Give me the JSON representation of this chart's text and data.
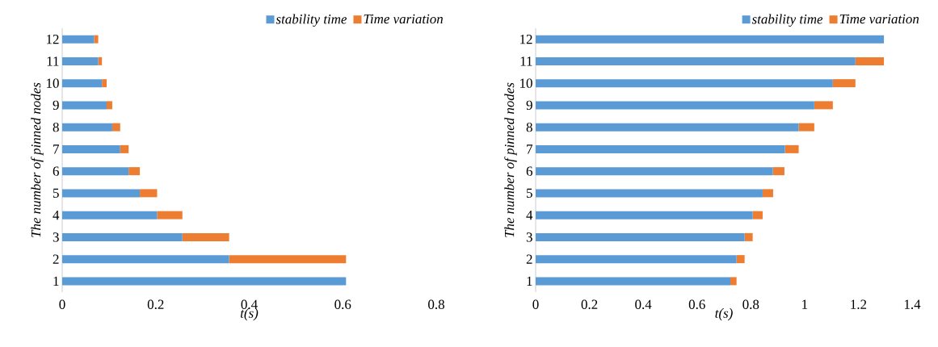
{
  "chart_data": [
    {
      "type": "bar",
      "orientation": "horizontal",
      "stacked": true,
      "legend": "top right",
      "xlabel": "t(s)",
      "ylabel": "The number of pinned nodes",
      "categories": [
        "12",
        "11",
        "10",
        "9",
        "8",
        "7",
        "6",
        "5",
        "4",
        "3",
        "2",
        "1"
      ],
      "xlim": [
        0,
        0.8
      ],
      "xticks": [
        0,
        0.2,
        0.4,
        0.6,
        0.8
      ],
      "series": [
        {
          "name": "stability time",
          "color": "#5b9bd5",
          "values": [
            0.068,
            0.077,
            0.085,
            0.095,
            0.107,
            0.124,
            0.142,
            0.166,
            0.203,
            0.257,
            0.357,
            0.607
          ]
        },
        {
          "name": "Time variation",
          "color": "#ed7d31",
          "values": [
            0.009,
            0.008,
            0.01,
            0.012,
            0.017,
            0.018,
            0.024,
            0.037,
            0.054,
            0.1,
            0.25,
            0
          ]
        }
      ]
    },
    {
      "type": "bar",
      "orientation": "horizontal",
      "stacked": true,
      "legend": "top right",
      "xlabel": "t(s)",
      "ylabel": "The number of pinned nodes",
      "categories": [
        "12",
        "11",
        "10",
        "9",
        "8",
        "7",
        "6",
        "5",
        "4",
        "3",
        "2",
        "1"
      ],
      "xlim": [
        0,
        1.4
      ],
      "xticks": [
        0,
        0.2,
        0.4,
        0.6,
        0.8,
        1,
        1.2,
        1.4
      ],
      "series": [
        {
          "name": "stability time",
          "color": "#5b9bd5",
          "values": [
            1.295,
            1.189,
            1.105,
            1.036,
            0.978,
            0.927,
            0.882,
            0.844,
            0.807,
            0.777,
            0.747,
            0.724
          ]
        },
        {
          "name": "Time variation",
          "color": "#ed7d31",
          "values": [
            0,
            0.106,
            0.084,
            0.069,
            0.058,
            0.051,
            0.043,
            0.039,
            0.037,
            0.03,
            0.03,
            0.023
          ]
        }
      ]
    }
  ]
}
